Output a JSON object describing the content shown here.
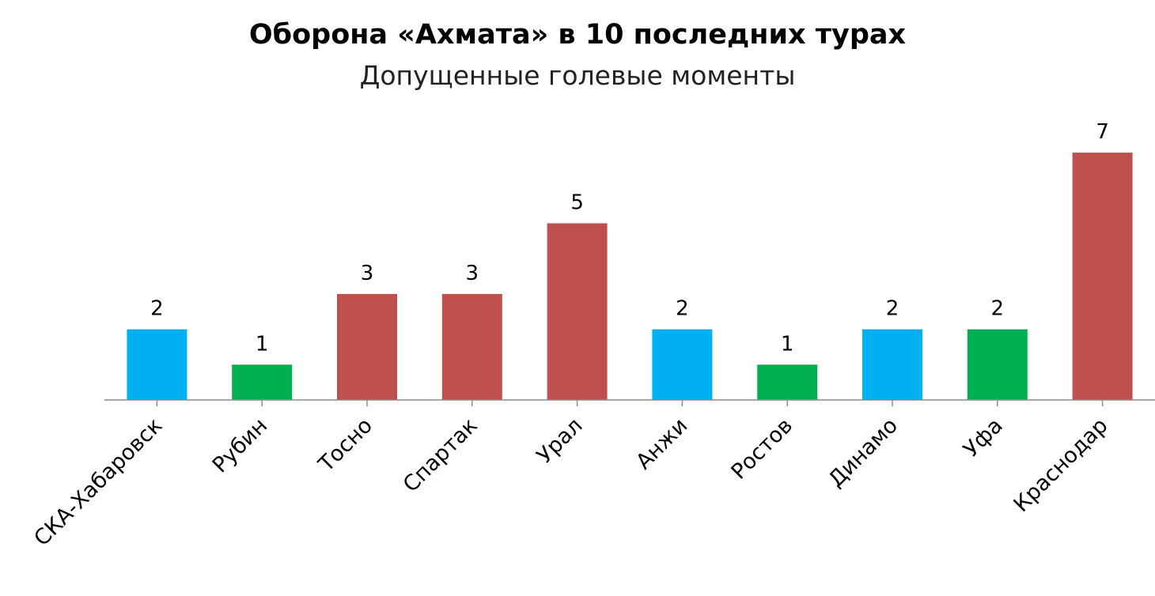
{
  "chart_data": {
    "type": "bar",
    "title": "Оборона «Ахмата» в 10 последних турах",
    "subtitle": "Допущенные голевые моменты",
    "xlabel": "",
    "ylabel": "",
    "ylim": [
      0,
      7
    ],
    "grid": false,
    "categories": [
      "СКА-Хабаровск",
      "Рубин",
      "Тосно",
      "Спартак",
      "Урал",
      "Анжи",
      "Ростов",
      "Динамо",
      "Уфа",
      "Краснодар"
    ],
    "values": [
      2,
      1,
      3,
      3,
      5,
      2,
      1,
      2,
      2,
      7
    ],
    "value_labels": [
      "2",
      "1",
      "3",
      "3",
      "5",
      "2",
      "1",
      "2",
      "2",
      "7"
    ],
    "bar_colors": [
      "#00b0f0",
      "#00b050",
      "#c0504d",
      "#c0504d",
      "#c0504d",
      "#00b0f0",
      "#00b050",
      "#00b0f0",
      "#00b050",
      "#c0504d"
    ]
  },
  "colors": {
    "axis": "#8c8c8c",
    "text": "#000000"
  }
}
